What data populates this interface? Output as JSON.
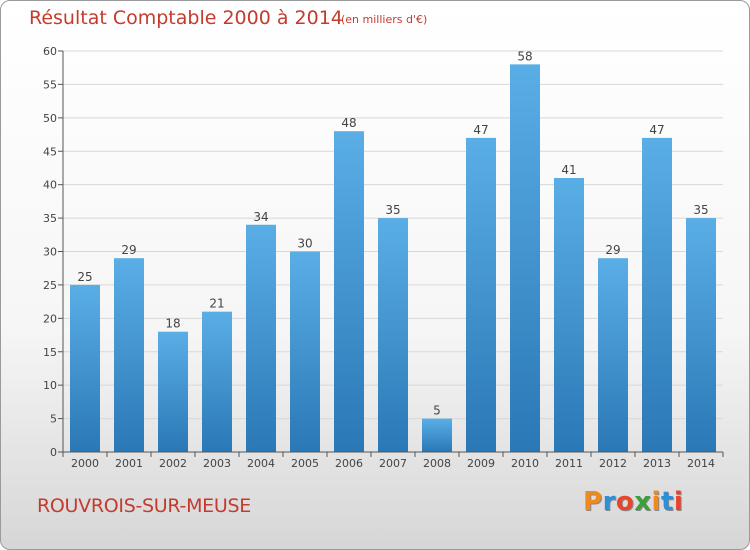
{
  "header": {
    "title": "Résultat Comptable 2000 à 2014",
    "subtitle": "(en milliers d'€)"
  },
  "footer": {
    "commune": "ROUVROIS-SUR-MEUSE",
    "logo": "Proxiti"
  },
  "colors": {
    "title": "#c43b2e",
    "bar_top": "#5aaee6",
    "bar_bottom": "#2a78b6",
    "logo_letters": [
      "#f08a1c",
      "#2f8fd6",
      "#e8452c",
      "#3aa03a",
      "#f08a1c",
      "#2f8fd6",
      "#e8452c"
    ]
  },
  "chart_data": {
    "type": "bar",
    "categories": [
      "2000",
      "2001",
      "2002",
      "2003",
      "2004",
      "2005",
      "2006",
      "2007",
      "2008",
      "2009",
      "2010",
      "2011",
      "2012",
      "2013",
      "2014"
    ],
    "values": [
      25,
      29,
      18,
      21,
      34,
      30,
      48,
      35,
      5,
      47,
      58,
      41,
      29,
      47,
      35
    ],
    "ylim": [
      0,
      60
    ],
    "yticks": [
      0,
      5,
      10,
      15,
      20,
      25,
      30,
      35,
      40,
      45,
      50,
      55,
      60
    ],
    "grid": true
  }
}
